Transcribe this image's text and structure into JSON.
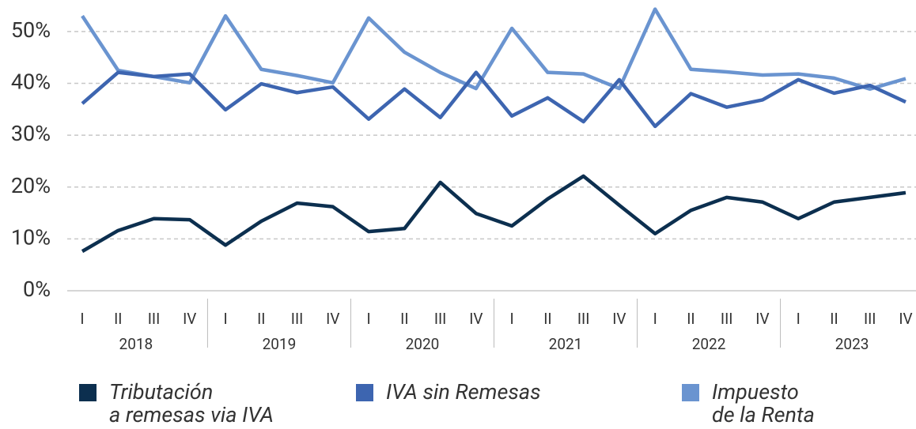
{
  "chart_data": {
    "type": "line",
    "categories": [
      "I",
      "II",
      "III",
      "IV",
      "I",
      "II",
      "III",
      "IV",
      "I",
      "II",
      "III",
      "IV",
      "I",
      "II",
      "III",
      "IV",
      "I",
      "II",
      "III",
      "IV",
      "I",
      "II",
      "III",
      "IV"
    ],
    "years": [
      "2018",
      "2019",
      "2020",
      "2021",
      "2022",
      "2023"
    ],
    "series": [
      {
        "name": "Tributación\na remesas via IVA",
        "color": "#0c2f4f",
        "values": [
          7.6,
          11.6,
          13.9,
          13.7,
          8.8,
          13.4,
          16.9,
          16.2,
          11.4,
          12.0,
          20.9,
          14.9,
          12.5,
          17.7,
          22.1,
          16.5,
          11.0,
          15.5,
          18.0,
          17.1,
          13.9,
          17.1,
          18.0,
          18.9
        ]
      },
      {
        "name": "IVA sin Remesas",
        "color": "#3d65b0",
        "values": [
          36.1,
          42.1,
          41.3,
          41.8,
          34.9,
          39.9,
          38.2,
          39.3,
          33.1,
          38.9,
          33.4,
          42.1,
          33.7,
          37.2,
          32.6,
          40.7,
          31.7,
          38.0,
          35.4,
          36.8,
          40.7,
          38.1,
          39.6,
          36.4
        ]
      },
      {
        "name": "Impuesto\nde la Renta",
        "color": "#6a94d0",
        "values": [
          53.0,
          42.5,
          41.3,
          40.1,
          53.0,
          42.7,
          41.5,
          40.1,
          52.6,
          46.0,
          42.1,
          39.0,
          50.6,
          42.1,
          41.8,
          39.0,
          54.3,
          42.7,
          42.2,
          41.6,
          41.8,
          41.0,
          38.9,
          40.9
        ]
      }
    ],
    "ylim": [
      0,
      55
    ],
    "yticks": [
      {
        "value": 0,
        "label": "0%"
      },
      {
        "value": 10,
        "label": "10%"
      },
      {
        "value": 20,
        "label": "20%"
      },
      {
        "value": 30,
        "label": "30%"
      },
      {
        "value": 40,
        "label": "40%"
      },
      {
        "value": 50,
        "label": "50%"
      }
    ],
    "grid": true
  }
}
